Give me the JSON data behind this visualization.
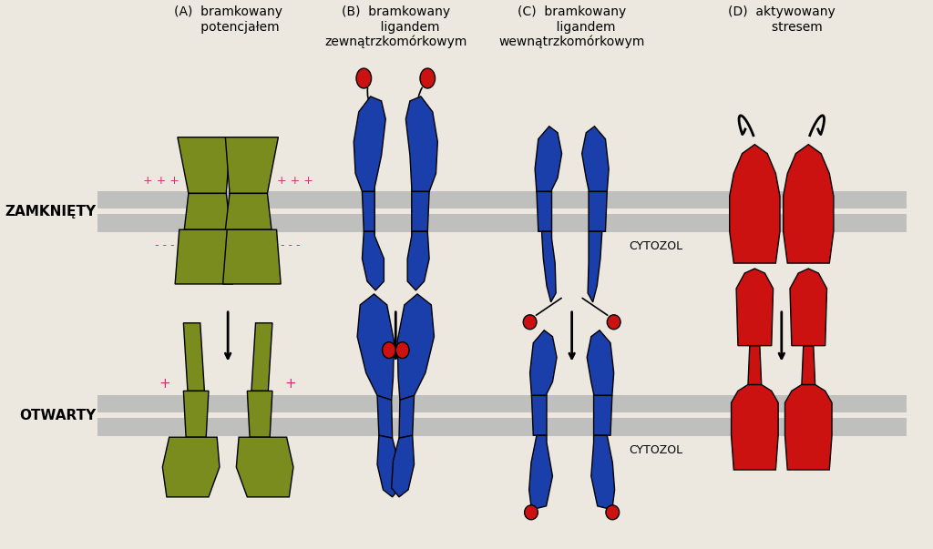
{
  "bg_color": "#ece8e0",
  "membrane_color": "#b8b8b8",
  "green_color": "#7a8c1e",
  "blue_color": "#1a3faa",
  "red_color": "#cc1111",
  "label_A": "(A)  bramkowany\n      potencjałem",
  "label_B": "(B)  bramkowany\n       ligandem\nzewnątrzkomórkowym",
  "label_C": "(C)  bramkowany\n       ligandem\nwewnątrzkomórkowym",
  "label_D": "(D)  aktywowany\n        stresem",
  "label_closed": "ZAMKNIĘTY",
  "label_open": "OTWARTY",
  "cytozol": "CYTOZOL"
}
